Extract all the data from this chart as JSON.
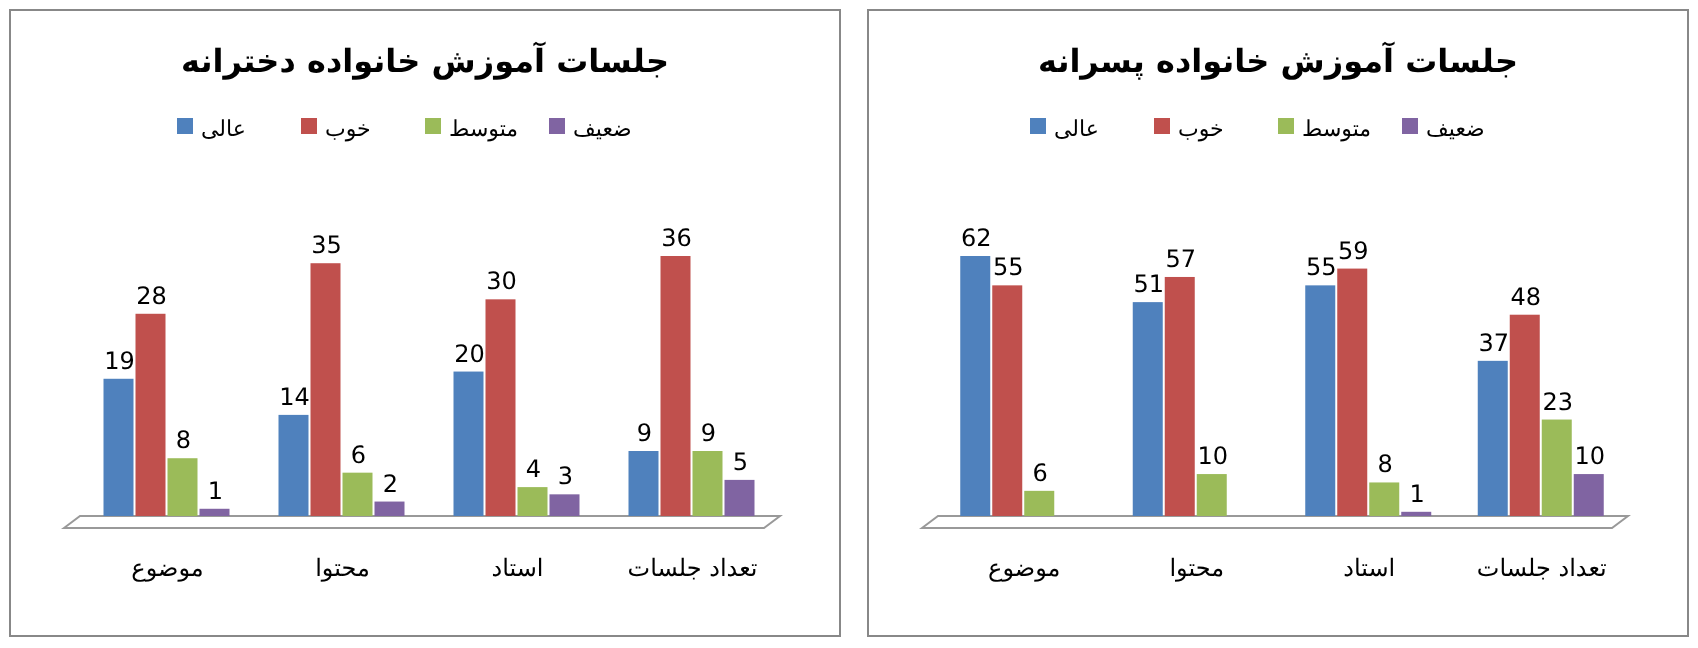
{
  "chart_data": [
    {
      "type": "bar",
      "title": "جلسات آموزش خانواده دخترانه",
      "categories": [
        "موضوع",
        "محتوا",
        "استاد",
        "تعداد جلسات"
      ],
      "data_labels": true,
      "legend": "top",
      "series": [
        {
          "name": "عالی",
          "color": "#4f81bd",
          "values": [
            19,
            14,
            20,
            9
          ]
        },
        {
          "name": "خوب",
          "color": "#c0504d",
          "values": [
            28,
            35,
            30,
            36
          ]
        },
        {
          "name": "متوسط",
          "color": "#9bbb59",
          "values": [
            8,
            6,
            4,
            9
          ]
        },
        {
          "name": "ضعیف",
          "color": "#8064a2",
          "values": [
            1,
            2,
            3,
            5
          ]
        }
      ]
    },
    {
      "type": "bar",
      "title": "جلسات آموزش خانواده پسرانه",
      "categories": [
        "موضوع",
        "محتوا",
        "استاد",
        "تعداد جلسات"
      ],
      "data_labels": true,
      "legend": "top",
      "series": [
        {
          "name": "عالی",
          "color": "#4f81bd",
          "values": [
            62,
            51,
            55,
            37
          ]
        },
        {
          "name": "خوب",
          "color": "#c0504d",
          "values": [
            55,
            57,
            59,
            48
          ]
        },
        {
          "name": "متوسط",
          "color": "#9bbb59",
          "values": [
            6,
            10,
            8,
            23
          ]
        },
        {
          "name": "ضعیف",
          "color": "#8064a2",
          "values": [
            null,
            null,
            1,
            10
          ]
        }
      ]
    }
  ]
}
